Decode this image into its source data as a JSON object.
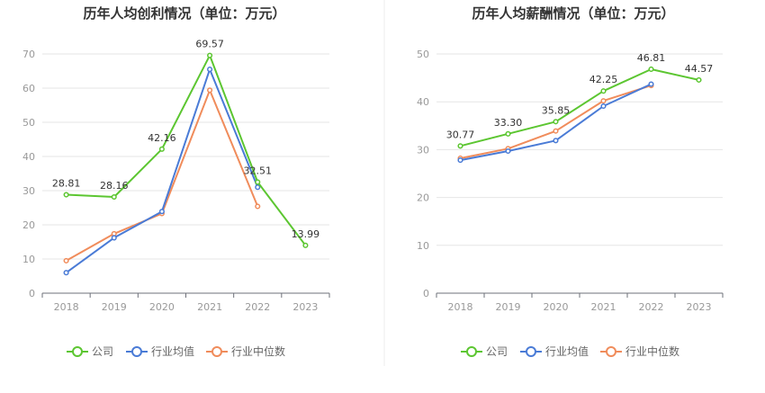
{
  "colors": {
    "company": "#5cc631",
    "industry_avg": "#4a7bd6",
    "industry_median": "#f08c5b",
    "grid": "#e6e6e6",
    "axis": "#6e7079",
    "divider": "#eeeeee"
  },
  "legend": [
    "公司",
    "行业均值",
    "行业中位数"
  ],
  "chart_data": [
    {
      "type": "line",
      "title": "历年人均创利情况（单位：万元）",
      "categories": [
        "2018",
        "2019",
        "2020",
        "2021",
        "2022",
        "2023"
      ],
      "ylim": [
        0,
        70
      ],
      "yticks": [
        0,
        10,
        20,
        30,
        40,
        50,
        60,
        70
      ],
      "grid": true,
      "legend_position": "bottom",
      "series": [
        {
          "name": "公司",
          "values": [
            28.81,
            28.16,
            42.16,
            69.57,
            32.51,
            13.99
          ],
          "labels": [
            "28.81",
            "28.16",
            "42.16",
            "69.57",
            "32.51",
            "13.99"
          ]
        },
        {
          "name": "行业均值",
          "values": [
            6.0,
            16.2,
            23.9,
            65.5,
            31.0,
            null
          ]
        },
        {
          "name": "行业中位数",
          "values": [
            9.5,
            17.4,
            23.3,
            59.4,
            25.4,
            null
          ]
        }
      ]
    },
    {
      "type": "line",
      "title": "历年人均薪酬情况（单位：万元）",
      "categories": [
        "2018",
        "2019",
        "2020",
        "2021",
        "2022",
        "2023"
      ],
      "ylim": [
        0,
        50
      ],
      "yticks": [
        0,
        10,
        20,
        30,
        40,
        50
      ],
      "grid": true,
      "legend_position": "bottom",
      "series": [
        {
          "name": "公司",
          "values": [
            30.77,
            33.3,
            35.85,
            42.25,
            46.81,
            44.57
          ],
          "labels": [
            "30.77",
            "33.30",
            "35.85",
            "42.25",
            "46.81",
            "44.57"
          ]
        },
        {
          "name": "行业均值",
          "values": [
            27.8,
            29.7,
            31.9,
            39.1,
            43.7,
            null
          ]
        },
        {
          "name": "行业中位数",
          "values": [
            28.2,
            30.2,
            33.9,
            40.2,
            43.4,
            null
          ]
        }
      ]
    }
  ]
}
